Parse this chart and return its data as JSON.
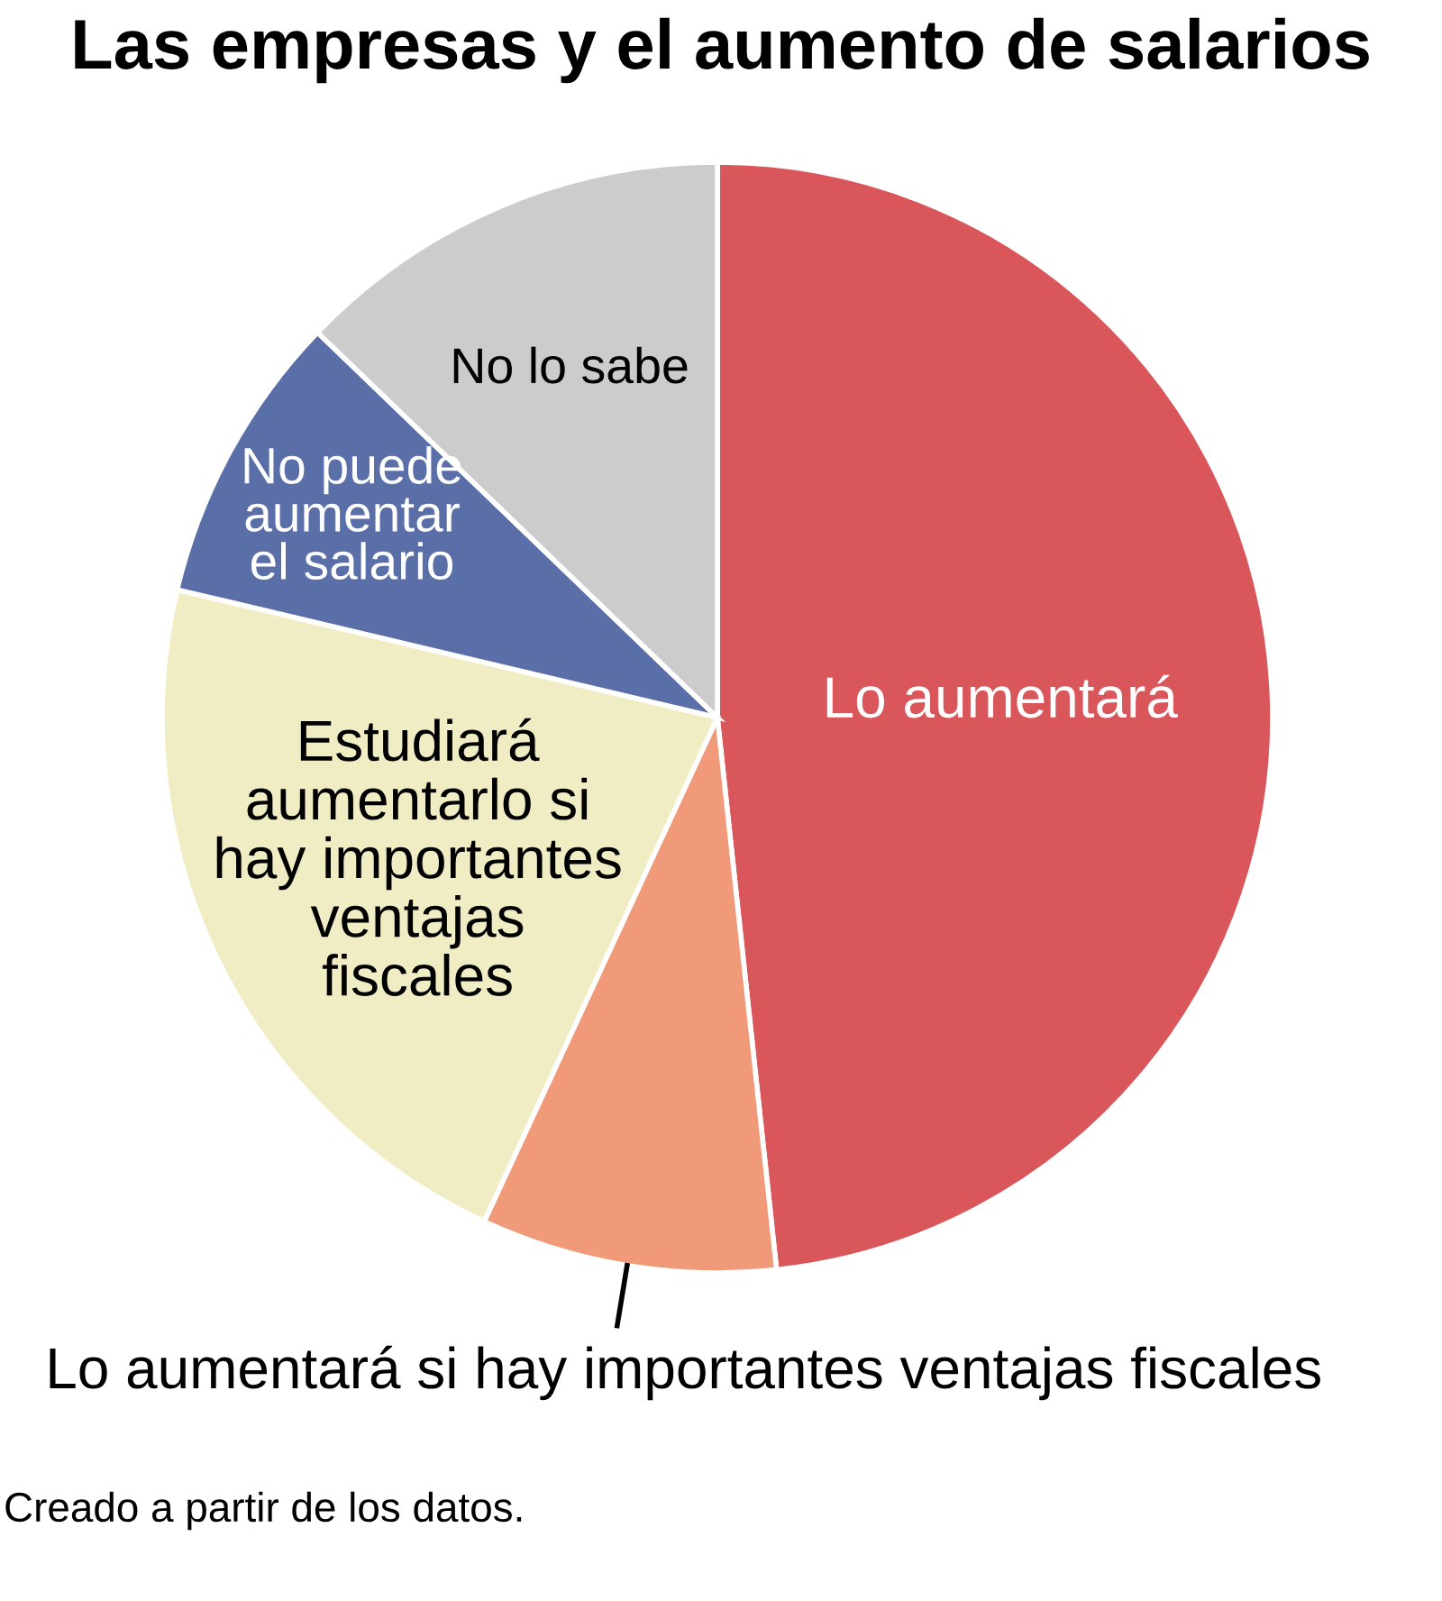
{
  "chart_data": {
    "type": "pie",
    "title": "Las empresas y el aumento de salarios",
    "categories": [
      "Lo aumentará",
      "Lo aumentará si hay importantes ventajas fiscales",
      "Estudiará\naumentarlo si\nhay importantes\nventajas\nfiscales",
      "No puede\naumentar\nel salario",
      "No lo sabe"
    ],
    "values": [
      48.3,
      8.6,
      21.8,
      8.5,
      12.8
    ],
    "colors": [
      "#d9575a",
      "#f19a7a",
      "#f0edc4",
      "#5a6ea8",
      "#cccccc"
    ],
    "annotations": [
      "Creado a partir de los datos."
    ]
  }
}
